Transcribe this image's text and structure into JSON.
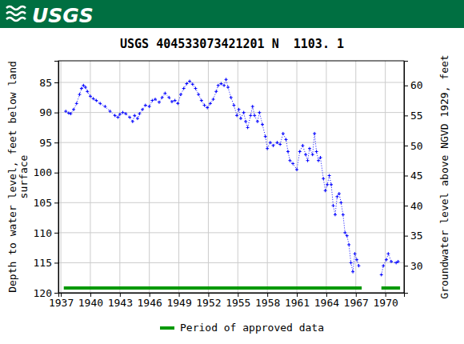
{
  "logo_text": "USGS",
  "chart_data": {
    "type": "line",
    "title": "USGS 404533073421201 N  1103. 1",
    "ylabel": [
      "Depth to water level, feet below land",
      "surface"
    ],
    "y2label": "Groundwater level above NGVD 1929, feet",
    "xlim": [
      1936.75,
      1971.9
    ],
    "xticks": [
      1937,
      1940,
      1943,
      1946,
      1949,
      1952,
      1955,
      1958,
      1961,
      1964,
      1967,
      1970
    ],
    "ylim": [
      120,
      81.4
    ],
    "yticks": [
      85,
      90,
      95,
      100,
      105,
      110,
      115,
      120
    ],
    "y2lim": [
      25.5,
      64.1
    ],
    "y2ticks": [
      30,
      35,
      40,
      45,
      50,
      55,
      60
    ],
    "grid": true,
    "legend": "bottom",
    "x": [
      1937.5,
      1937.8,
      1938.0,
      1938.3,
      1938.6,
      1938.9,
      1939.1,
      1939.3,
      1939.5,
      1939.7,
      1940.0,
      1940.3,
      1940.6,
      1941.0,
      1941.5,
      1942.0,
      1942.5,
      1942.8,
      1943.0,
      1943.3,
      1943.6,
      1944.0,
      1944.3,
      1944.5,
      1944.8,
      1945.0,
      1945.3,
      1945.6,
      1946.0,
      1946.3,
      1946.6,
      1947.0,
      1947.3,
      1947.6,
      1948.0,
      1948.3,
      1948.6,
      1948.9,
      1949.2,
      1949.5,
      1949.8,
      1950.1,
      1950.4,
      1950.7,
      1951.0,
      1951.3,
      1951.6,
      1951.9,
      1952.2,
      1952.5,
      1952.8,
      1953.0,
      1953.3,
      1953.6,
      1953.8,
      1954.0,
      1954.3,
      1954.6,
      1954.9,
      1955.1,
      1955.3,
      1955.6,
      1955.8,
      1956.0,
      1956.3,
      1956.5,
      1956.7,
      1957.0,
      1957.2,
      1957.5,
      1957.8,
      1958.0,
      1958.3,
      1958.6,
      1959.0,
      1959.3,
      1959.6,
      1959.9,
      1960.1,
      1960.3,
      1960.6,
      1961.0,
      1961.3,
      1961.6,
      1961.9,
      1962.1,
      1962.3,
      1962.6,
      1962.8,
      1963.0,
      1963.2,
      1963.4,
      1963.7,
      1963.9,
      1964.1,
      1964.3,
      1964.5,
      1964.7,
      1964.9,
      1965.1,
      1965.3,
      1965.5,
      1965.7,
      1965.9,
      1966.1,
      1966.3,
      1966.5,
      1966.7,
      1966.9,
      1967.1,
      1967.3,
      1968.5,
      1969.6,
      1969.8,
      1970.1,
      1970.3,
      1970.6,
      1971.1,
      1971.3
    ],
    "series": [
      {
        "name": "Depth to water level",
        "color": "#0000ff",
        "marker": "plus",
        "line_style": "dotted",
        "values": [
          89.8,
          90.1,
          90.2,
          89.5,
          88.5,
          87.0,
          86.0,
          85.5,
          85.8,
          86.5,
          87.3,
          87.7,
          88.0,
          88.5,
          89.0,
          89.8,
          90.5,
          90.8,
          90.3,
          90.0,
          90.2,
          90.8,
          91.5,
          90.5,
          91.0,
          90.2,
          89.5,
          88.8,
          89.0,
          88.0,
          87.8,
          88.3,
          87.5,
          86.8,
          87.5,
          88.2,
          88.0,
          88.5,
          87.0,
          86.0,
          85.2,
          84.8,
          85.3,
          86.0,
          87.0,
          88.0,
          88.8,
          89.2,
          88.5,
          87.8,
          86.5,
          85.5,
          85.2,
          85.5,
          84.5,
          85.8,
          87.5,
          88.8,
          90.5,
          89.5,
          91.0,
          90.0,
          91.5,
          92.5,
          90.5,
          89.0,
          90.5,
          91.5,
          90.0,
          92.0,
          94.0,
          96.0,
          95.0,
          95.5,
          95.0,
          95.3,
          93.5,
          94.5,
          96.5,
          98.0,
          98.5,
          99.5,
          96.5,
          95.5,
          97.0,
          98.0,
          96.0,
          97.0,
          93.5,
          96.5,
          98.0,
          97.5,
          101.0,
          103.0,
          102.0,
          100.5,
          102.0,
          105.5,
          107.0,
          104.0,
          103.5,
          105.0,
          107.0,
          110.0,
          110.5,
          112.0,
          115.0,
          116.5,
          113.5,
          114.5,
          115.5,
          null,
          117.0,
          115.5,
          114.5,
          113.5,
          114.8,
          115.0,
          114.8
        ]
      },
      {
        "name": "Period of approved data",
        "color": "#009900",
        "type": "span",
        "values": [
          [
            1937.3,
            1967.6
          ],
          [
            1969.6,
            1971.5
          ]
        ]
      }
    ]
  }
}
